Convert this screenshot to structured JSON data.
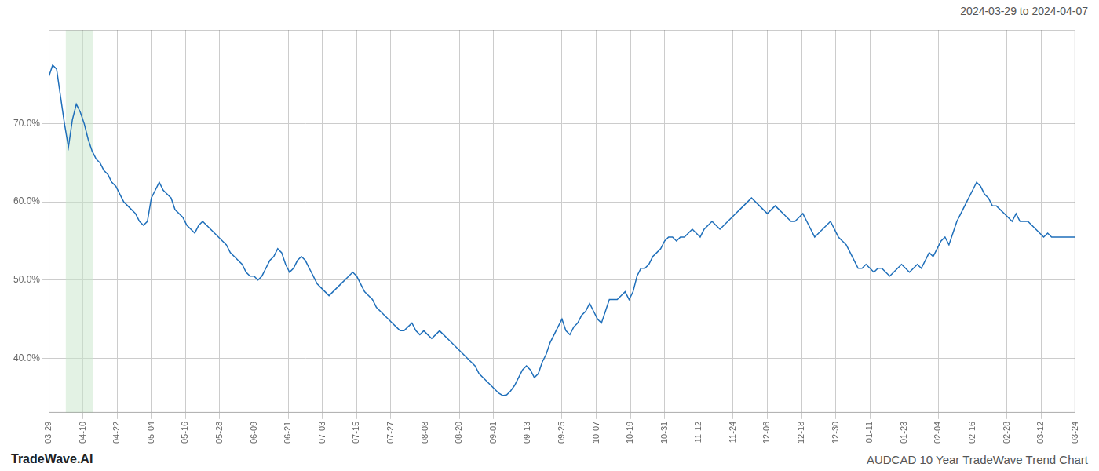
{
  "chart_data": {
    "type": "line",
    "title": "AUDCAD 10 Year TradeWave Trend Chart",
    "subtitle": "2024-03-29 to 2024-04-07",
    "annotations": [
      "TradeWave.AI"
    ],
    "color": "#1f6fba",
    "grid": true,
    "xlim": [
      0,
      30
    ],
    "xticks": [
      {
        "value": 0,
        "label": "03-29"
      },
      {
        "value": 1,
        "label": "04-10"
      },
      {
        "value": 2,
        "label": "04-22"
      },
      {
        "value": 3,
        "label": "05-04"
      },
      {
        "value": 4,
        "label": "05-16"
      },
      {
        "value": 5,
        "label": "05-28"
      },
      {
        "value": 6,
        "label": "06-09"
      },
      {
        "value": 7,
        "label": "06-21"
      },
      {
        "value": 8,
        "label": "07-03"
      },
      {
        "value": 9,
        "label": "07-15"
      },
      {
        "value": 10,
        "label": "07-27"
      },
      {
        "value": 11,
        "label": "08-08"
      },
      {
        "value": 12,
        "label": "08-20"
      },
      {
        "value": 13,
        "label": "09-01"
      },
      {
        "value": 14,
        "label": "09-13"
      },
      {
        "value": 15,
        "label": "09-25"
      },
      {
        "value": 16,
        "label": "10-07"
      },
      {
        "value": 17,
        "label": "10-19"
      },
      {
        "value": 18,
        "label": "10-31"
      },
      {
        "value": 19,
        "label": "11-12"
      },
      {
        "value": 20,
        "label": "11-24"
      },
      {
        "value": 21,
        "label": "12-06"
      },
      {
        "value": 22,
        "label": "12-18"
      },
      {
        "value": 23,
        "label": "12-30"
      },
      {
        "value": 24,
        "label": "01-11"
      },
      {
        "value": 25,
        "label": "01-23"
      },
      {
        "value": 26,
        "label": "02-04"
      },
      {
        "value": 27,
        "label": "02-16"
      },
      {
        "value": 28,
        "label": "02-28"
      },
      {
        "value": 29,
        "label": "03-12"
      },
      {
        "value": 30,
        "label": "03-24"
      }
    ],
    "ylim": [
      33,
      82
    ],
    "yticks": [
      {
        "value": 40,
        "label": "40.0%"
      },
      {
        "value": 50,
        "label": "50.0%"
      },
      {
        "value": 60,
        "label": "60.0%"
      },
      {
        "value": 70,
        "label": "70.0%"
      }
    ],
    "spans": [
      {
        "xstart": 0.5,
        "xend": 1.3,
        "color": "#c8e6c9"
      }
    ],
    "x": [
      0,
      0.1154,
      0.2308,
      0.3462,
      0.4615,
      0.5769,
      0.6923,
      0.8077,
      0.9231,
      1.0385,
      1.1538,
      1.2692,
      1.3846,
      1.5,
      1.6154,
      1.7308,
      1.8462,
      1.9615,
      2.0769,
      2.1923,
      2.3077,
      2.4231,
      2.5385,
      2.6538,
      2.7692,
      2.8846,
      3,
      3.1154,
      3.2308,
      3.3462,
      3.4615,
      3.5769,
      3.6923,
      3.8077,
      3.9231,
      4.0385,
      4.1538,
      4.2692,
      4.3846,
      4.5,
      4.6154,
      4.7308,
      4.8462,
      4.9615,
      5.0769,
      5.1923,
      5.3077,
      5.4231,
      5.5385,
      5.6538,
      5.7692,
      5.8846,
      6,
      6.1154,
      6.2308,
      6.3462,
      6.4615,
      6.5769,
      6.6923,
      6.8077,
      6.9231,
      7.0385,
      7.1538,
      7.2692,
      7.3846,
      7.5,
      7.6154,
      7.7308,
      7.8462,
      7.9615,
      8.0769,
      8.1923,
      8.3077,
      8.4231,
      8.5385,
      8.6538,
      8.7692,
      8.8846,
      9,
      9.1154,
      9.2308,
      9.3462,
      9.4615,
      9.5769,
      9.6923,
      9.8077,
      9.9231,
      10.0385,
      10.1538,
      10.2692,
      10.3846,
      10.5,
      10.6154,
      10.7308,
      10.8462,
      10.9615,
      11.0769,
      11.1923,
      11.3077,
      11.4231,
      11.5385,
      11.6538,
      11.7692,
      11.8846,
      12,
      12.1154,
      12.2308,
      12.3462,
      12.4615,
      12.5769,
      12.6923,
      12.8077,
      12.9231,
      13.0385,
      13.1538,
      13.2692,
      13.3846,
      13.5,
      13.6154,
      13.7308,
      13.8462,
      13.9615,
      14.0769,
      14.1923,
      14.3077,
      14.4231,
      14.5385,
      14.6538,
      14.7692,
      14.8846,
      15,
      15.1154,
      15.2308,
      15.3462,
      15.4615,
      15.5769,
      15.6923,
      15.8077,
      15.9231,
      16.0385,
      16.1538,
      16.2692,
      16.3846,
      16.5,
      16.6154,
      16.7308,
      16.8462,
      16.9615,
      17.0769,
      17.1923,
      17.3077,
      17.4231,
      17.5385,
      17.6538,
      17.7692,
      17.8846,
      18,
      18.1154,
      18.2308,
      18.3462,
      18.4615,
      18.5769,
      18.6923,
      18.8077,
      18.9231,
      19.0385,
      19.1538,
      19.2692,
      19.3846,
      19.5,
      19.6154,
      19.7308,
      19.8462,
      19.9615,
      20.0769,
      20.1923,
      20.3077,
      20.4231,
      20.5385,
      20.6538,
      20.7692,
      20.8846,
      21,
      21.1154,
      21.2308,
      21.3462,
      21.4615,
      21.5769,
      21.6923,
      21.8077,
      21.9231,
      22.0385,
      22.1538,
      22.2692,
      22.3846,
      22.5,
      22.6154,
      22.7308,
      22.8462,
      22.9615,
      23.0769,
      23.1923,
      23.3077,
      23.4231,
      23.5385,
      23.6538,
      23.7692,
      23.8846,
      24,
      24.1154,
      24.2308,
      24.3462,
      24.4615,
      24.5769,
      24.6923,
      24.8077,
      24.9231,
      25.0385,
      25.1538,
      25.2692,
      25.3846,
      25.5,
      25.6154,
      25.7308,
      25.8462,
      25.9615,
      26.0769,
      26.1923,
      26.3077,
      26.4231,
      26.5385,
      26.6538,
      26.7692,
      26.8846,
      27,
      27.1154,
      27.2308,
      27.3462,
      27.4615,
      27.5769,
      27.6923,
      27.8077,
      27.9231,
      28.0385,
      28.1538,
      28.2692,
      28.3846,
      28.5,
      28.6154,
      28.7308,
      28.8462,
      28.9615,
      29.0769,
      29.1923,
      29.3077,
      29.4231,
      29.5385,
      29.6538,
      29.7692,
      29.8846,
      30
    ],
    "values": [
      76.0,
      77.5,
      77.0,
      73.5,
      70.0,
      67.0,
      70.5,
      72.5,
      71.5,
      70.0,
      68.0,
      66.5,
      65.5,
      65.0,
      64.0,
      63.5,
      62.5,
      62.0,
      61.0,
      60.0,
      59.5,
      59.0,
      58.5,
      57.5,
      57.0,
      57.5,
      60.5,
      61.5,
      62.5,
      61.5,
      61.0,
      60.5,
      59.0,
      58.5,
      58.0,
      57.0,
      56.5,
      56.0,
      57.0,
      57.5,
      57.0,
      56.5,
      56.0,
      55.5,
      55.0,
      54.5,
      53.5,
      53.0,
      52.5,
      52.0,
      51.0,
      50.5,
      50.5,
      50.0,
      50.5,
      51.5,
      52.5,
      53.0,
      54.0,
      53.5,
      52.0,
      51.0,
      51.5,
      52.5,
      53.0,
      52.5,
      51.5,
      50.5,
      49.5,
      49.0,
      48.5,
      48.0,
      48.5,
      49.0,
      49.5,
      50.0,
      50.5,
      51.0,
      50.5,
      49.5,
      48.5,
      48.0,
      47.5,
      46.5,
      46.0,
      45.5,
      45.0,
      44.5,
      44.0,
      43.5,
      43.5,
      44.0,
      44.5,
      43.5,
      43.0,
      43.5,
      43.0,
      42.5,
      43.0,
      43.5,
      43.0,
      42.5,
      42.0,
      41.5,
      41.0,
      40.5,
      40.0,
      39.5,
      39.0,
      38.0,
      37.5,
      37.0,
      36.5,
      36.0,
      35.5,
      35.2,
      35.3,
      35.8,
      36.5,
      37.5,
      38.5,
      39.0,
      38.5,
      37.5,
      38.0,
      39.5,
      40.5,
      42.0,
      43.0,
      44.0,
      45.0,
      43.5,
      43.0,
      44.0,
      44.5,
      45.5,
      46.0,
      47.0,
      46.0,
      45.0,
      44.5,
      46.0,
      47.5,
      47.5,
      47.5,
      48.0,
      48.5,
      47.5,
      48.5,
      50.5,
      51.5,
      51.5,
      52.0,
      53.0,
      53.5,
      54.0,
      55.0,
      55.5,
      55.5,
      55.0,
      55.5,
      55.5,
      56.0,
      56.5,
      56.0,
      55.5,
      56.5,
      57.0,
      57.5,
      57.0,
      56.5,
      57.0,
      57.5,
      58.0,
      58.5,
      59.0,
      59.5,
      60.0,
      60.5,
      60.0,
      59.5,
      59.0,
      58.5,
      59.0,
      59.5,
      59.0,
      58.5,
      58.0,
      57.5,
      57.5,
      58.0,
      58.5,
      57.5,
      56.5,
      55.5,
      56.0,
      56.5,
      57.0,
      57.5,
      56.5,
      55.5,
      55.0,
      54.5,
      53.5,
      52.5,
      51.5,
      51.5,
      52.0,
      51.5,
      51.0,
      51.5,
      51.5,
      51.0,
      50.5,
      51.0,
      51.5,
      52.0,
      51.5,
      51.0,
      51.5,
      52.0,
      51.5,
      52.5,
      53.5,
      53.0,
      54.0,
      55.0,
      55.5,
      54.5,
      56.0,
      57.5,
      58.5,
      59.5,
      60.5,
      61.5,
      62.5,
      62.0,
      61.0,
      60.5,
      59.5,
      59.5,
      59.0,
      58.5,
      58.0,
      57.5,
      58.5,
      57.5,
      57.5,
      57.5,
      57.0,
      56.5,
      56.0,
      55.5,
      56.0,
      55.5,
      55.5,
      55.5,
      55.5,
      55.5,
      55.5,
      55.5
    ]
  }
}
